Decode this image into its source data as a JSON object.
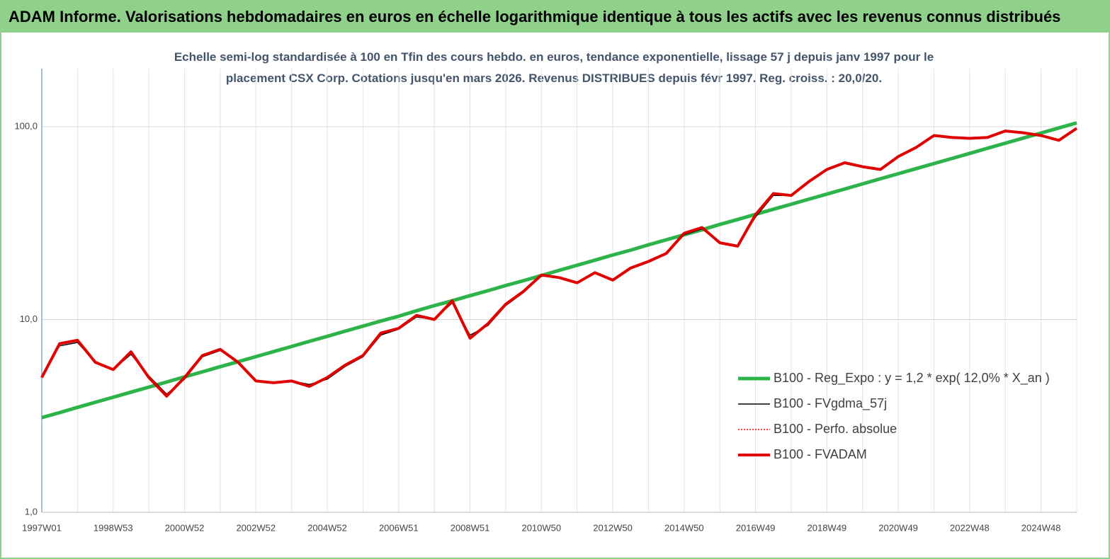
{
  "chart_data": {
    "type": "line",
    "title": "ADAM Informe. Valorisations hebdomadaires en euros en échelle logarithmique identique à tous les actifs avec les revenus connus distribués",
    "subtitle": "Echelle semi-log standardisée à 100 en Tfin des cours hebdo. en euros, tendance exponentielle, lissage 57 j depuis janv 1997 pour le placement CSX Corp. Cotations jusqu'en mars 2026. Revenus DISTRIBUES depuis févr 1997. Reg. croiss. : 20,0/20.",
    "categories": [
      "1997W01",
      null,
      null,
      null,
      "1998W53",
      null,
      null,
      null,
      "2000W52",
      null,
      null,
      null,
      "2002W52",
      null,
      null,
      null,
      "2004W52",
      null,
      null,
      null,
      "2006W51",
      null,
      null,
      null,
      "2008W51",
      null,
      null,
      null,
      "2010W50",
      null,
      null,
      null,
      "2012W50",
      null,
      null,
      null,
      "2014W50",
      null,
      null,
      null,
      "2016W49",
      null,
      null,
      null,
      "2018W49",
      null,
      null,
      null,
      "2020W49",
      null,
      null,
      null,
      "2022W48",
      null,
      null,
      null,
      "2024W48",
      null,
      null
    ],
    "log_scale": true,
    "ylim": [
      1,
      200
    ],
    "yticks": [
      {
        "value": 1,
        "label": "1,0"
      },
      {
        "value": 10,
        "label": "10,0"
      },
      {
        "value": 100,
        "label": "100,0"
      }
    ],
    "grid": true,
    "legend": "right",
    "series": [
      {
        "name": "B100 - Reg_Expo : y = 1,2 * exp( 12,0% *  X_an )",
        "color": "#2db34a",
        "width": 5,
        "dash": "none",
        "values": [
          3.1,
          3.29,
          3.5,
          3.72,
          3.95,
          4.2,
          4.46,
          4.74,
          5.04,
          5.35,
          5.69,
          6.04,
          6.42,
          6.82,
          7.25,
          7.7,
          8.18,
          8.7,
          9.24,
          9.82,
          10.4,
          11.1,
          11.8,
          12.5,
          13.3,
          14.1,
          15.0,
          15.9,
          16.9,
          18.0,
          19.1,
          20.3,
          21.6,
          22.9,
          24.4,
          25.9,
          27.5,
          29.2,
          31.1,
          33.0,
          35.1,
          37.3,
          39.6,
          42.1,
          44.7,
          47.5,
          50.5,
          53.7,
          57.0,
          60.6,
          64.4,
          68.4,
          72.7,
          77.3,
          82.1,
          87.2,
          92.7,
          98.5,
          104.7
        ]
      },
      {
        "name": "B100 - FVgdma_57j",
        "color": "#000000",
        "width": 1.5,
        "dash": "none",
        "values": [
          5.1,
          7.3,
          7.6,
          6.0,
          5.5,
          6.6,
          5.1,
          4.1,
          4.9,
          6.4,
          6.9,
          6.0,
          4.8,
          4.7,
          4.8,
          4.6,
          4.9,
          5.7,
          6.4,
          8.3,
          8.9,
          10.3,
          10.0,
          12.2,
          8.3,
          9.3,
          11.8,
          13.8,
          16.8,
          16.6,
          15.6,
          17.3,
          16.2,
          18.3,
          19.8,
          21.8,
          27.5,
          29.5,
          25.2,
          24.2,
          34.0,
          44.0,
          44.0,
          51.5,
          59.5,
          64.5,
          62.0,
          60.0,
          69.5,
          77.5,
          89.0,
          88.0,
          87.0,
          88.0,
          94.0,
          93.0,
          90.0,
          85.5,
          97.0
        ]
      },
      {
        "name": "B100 - Perfo. absolue",
        "color": "#e00000",
        "width": 1.5,
        "dash": "2 2",
        "values": [
          5.0,
          7.5,
          7.8,
          6.0,
          5.5,
          6.8,
          5.0,
          4.0,
          5.0,
          6.5,
          7.0,
          6.0,
          4.8,
          4.7,
          4.8,
          4.5,
          5.0,
          5.8,
          6.5,
          8.5,
          9.0,
          10.5,
          10.0,
          12.5,
          8.0,
          9.5,
          12.0,
          14.0,
          17.0,
          16.5,
          15.5,
          17.5,
          16.0,
          18.5,
          20.0,
          22.0,
          28.0,
          30.0,
          25.0,
          24.0,
          35.0,
          45.0,
          44.0,
          52.0,
          60.0,
          65.0,
          62.0,
          60.0,
          70.0,
          78.0,
          90.0,
          88.0,
          87.0,
          88.0,
          95.0,
          93.0,
          90.0,
          85.0,
          98.0
        ]
      },
      {
        "name": "B100 - FVADAM",
        "color": "#e00000",
        "width": 4,
        "dash": "none",
        "values": [
          5.0,
          7.5,
          7.8,
          6.0,
          5.5,
          6.8,
          5.0,
          4.0,
          5.0,
          6.5,
          7.0,
          6.0,
          4.8,
          4.7,
          4.8,
          4.5,
          5.0,
          5.8,
          6.5,
          8.5,
          9.0,
          10.5,
          10.0,
          12.5,
          8.0,
          9.5,
          12.0,
          14.0,
          17.0,
          16.5,
          15.5,
          17.5,
          16.0,
          18.5,
          20.0,
          22.0,
          28.0,
          30.0,
          25.0,
          24.0,
          35.0,
          45.0,
          44.0,
          52.0,
          60.0,
          65.0,
          62.0,
          60.0,
          70.0,
          78.0,
          90.0,
          88.0,
          87.0,
          88.0,
          95.0,
          93.0,
          90.0,
          85.0,
          98.0
        ]
      }
    ]
  }
}
